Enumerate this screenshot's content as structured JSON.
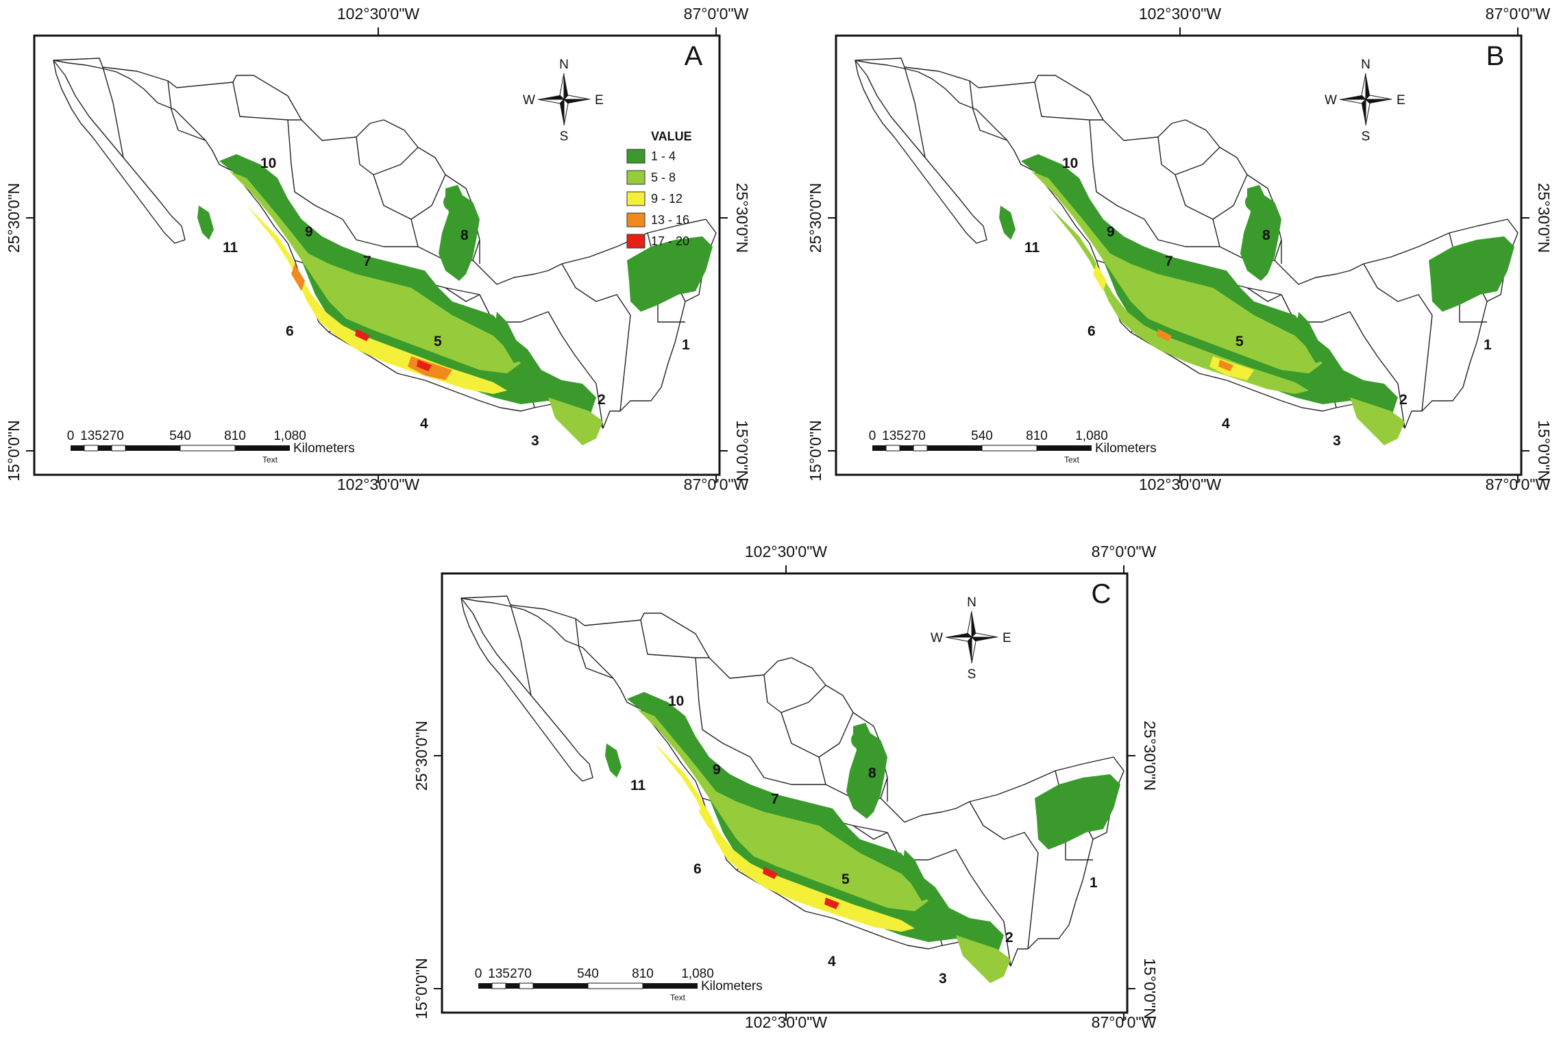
{
  "coords": {
    "lon_west": "102°30'0\"W",
    "lon_east": "87°0'0\"W",
    "lat_north": "25°30'0\"N",
    "lat_south": "15°0'0\"N"
  },
  "compass": {
    "n": "N",
    "s": "S",
    "e": "E",
    "w": "W"
  },
  "scale": {
    "ticks": [
      "0",
      "135",
      "270",
      "540",
      "810",
      "1,080"
    ],
    "unit": "Kilometers",
    "caption": "Text"
  },
  "legend": {
    "title": "VALUE",
    "classes": [
      {
        "label": "1 - 4",
        "color": "#3a9a2c"
      },
      {
        "label": "5 - 8",
        "color": "#96cc3c"
      },
      {
        "label": "9 - 12",
        "color": "#f4f03a"
      },
      {
        "label": "13 - 16",
        "color": "#f08a1e"
      },
      {
        "label": "17 - 20",
        "color": "#e52117"
      }
    ]
  },
  "panels": [
    {
      "label": "A",
      "fill": "warm"
    },
    {
      "label": "B",
      "fill": "mid"
    },
    {
      "label": "C",
      "fill": "cool"
    }
  ],
  "regions": [
    "1",
    "2",
    "3",
    "4",
    "5",
    "6",
    "7",
    "8",
    "9",
    "10",
    "11"
  ]
}
